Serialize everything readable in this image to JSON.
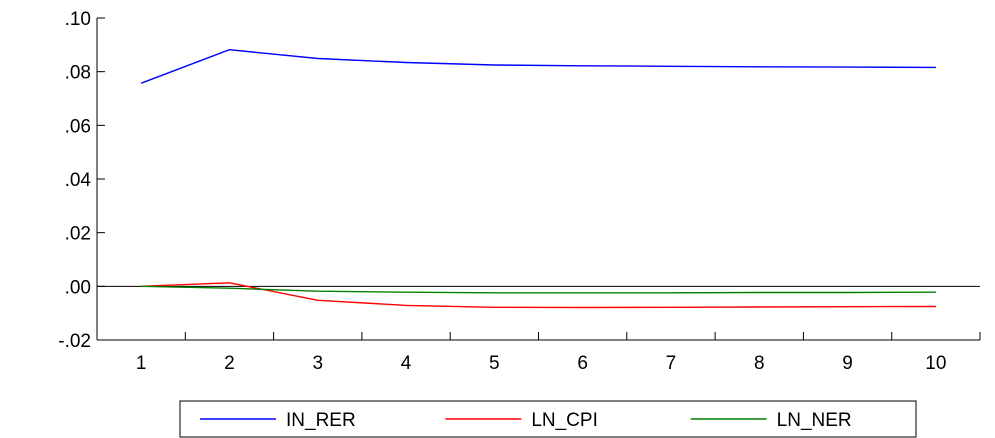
{
  "chart_data": {
    "type": "line",
    "title": "",
    "xlabel": "",
    "ylabel": "",
    "x": [
      1,
      2,
      3,
      4,
      5,
      6,
      7,
      8,
      9,
      10
    ],
    "x_tick_labels": [
      "1",
      "2",
      "3",
      "4",
      "5",
      "6",
      "7",
      "8",
      "9",
      "10"
    ],
    "ylim": [
      -0.02,
      0.1
    ],
    "y_ticks": [
      -0.02,
      0.0,
      0.02,
      0.04,
      0.06,
      0.08,
      0.1
    ],
    "y_tick_labels": [
      "-.02",
      ".00",
      ".02",
      ".04",
      ".06",
      ".08",
      ".10"
    ],
    "zero_line": true,
    "grid": false,
    "legend_position": "bottom",
    "series": [
      {
        "name": "IN_RER",
        "color": "#0000ff",
        "values": [
          0.0757,
          0.0882,
          0.0849,
          0.0834,
          0.0825,
          0.0822,
          0.082,
          0.0818,
          0.0817,
          0.0816
        ]
      },
      {
        "name": "LN_CPI",
        "color": "#ff0000",
        "values": [
          0.0,
          0.0013,
          -0.0052,
          -0.0071,
          -0.0078,
          -0.0079,
          -0.0078,
          -0.0077,
          -0.0076,
          -0.0075
        ]
      },
      {
        "name": "LN_NER",
        "color": "#008000",
        "values": [
          0.0,
          -0.0007,
          -0.0018,
          -0.0022,
          -0.0024,
          -0.0024,
          -0.0024,
          -0.0023,
          -0.0023,
          -0.0022
        ]
      }
    ]
  }
}
